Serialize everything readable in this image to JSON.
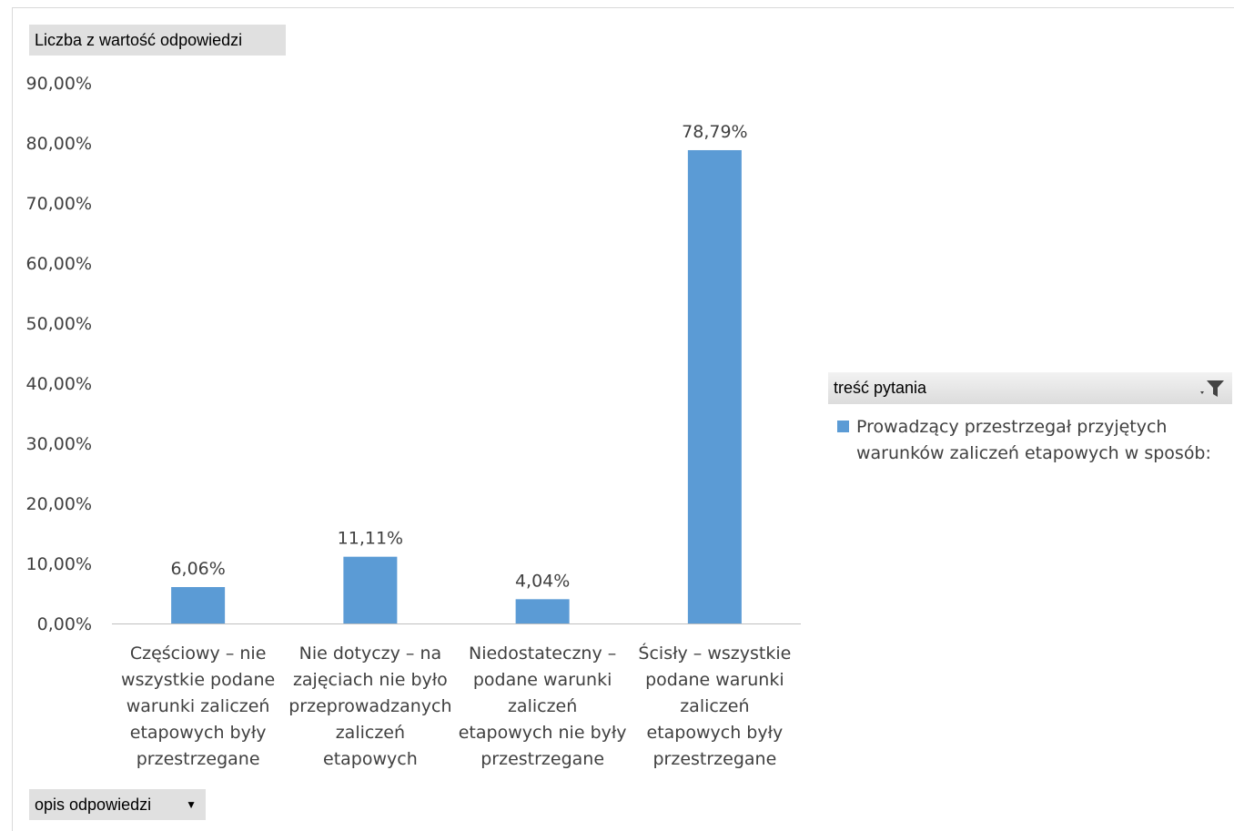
{
  "pivot": {
    "values_field": "Liczba z wartość odpowiedzi",
    "axis_field": "opis odpowiedzi",
    "legend_field": "treść pytania"
  },
  "icons": {
    "axis_dropdown": "chevron-down-icon",
    "legend_filter": "filter-icon"
  },
  "colors": {
    "bar": "#5b9bd5"
  },
  "chart_data": {
    "type": "bar",
    "title": "",
    "xlabel": "",
    "ylabel": "",
    "ylim": [
      0,
      90
    ],
    "yticks": [
      "0,00%",
      "10,00%",
      "20,00%",
      "30,00%",
      "40,00%",
      "50,00%",
      "60,00%",
      "70,00%",
      "80,00%",
      "90,00%"
    ],
    "grid": false,
    "legend_position": "right",
    "categories": [
      [
        "Częściowy – nie",
        "wszystkie podane",
        "warunki zaliczeń",
        "etapowych były",
        "przestrzegane"
      ],
      [
        "Nie dotyczy – na",
        "zajęciach nie było",
        "przeprowadzanych",
        "zaliczeń",
        "etapowych"
      ],
      [
        "Niedostateczny –",
        "podane warunki",
        "zaliczeń",
        "etapowych nie były",
        "przestrzegane"
      ],
      [
        "Ścisły – wszystkie",
        "podane warunki",
        "zaliczeń",
        "etapowych były",
        "przestrzegane"
      ]
    ],
    "series": [
      {
        "name": "Prowadzący przestrzegał przyjętych warunków zaliczeń etapowych w sposób:",
        "values": [
          6.06,
          11.11,
          4.04,
          78.79
        ],
        "labels": [
          "6,06%",
          "11,11%",
          "4,04%",
          "78,79%"
        ]
      }
    ]
  }
}
